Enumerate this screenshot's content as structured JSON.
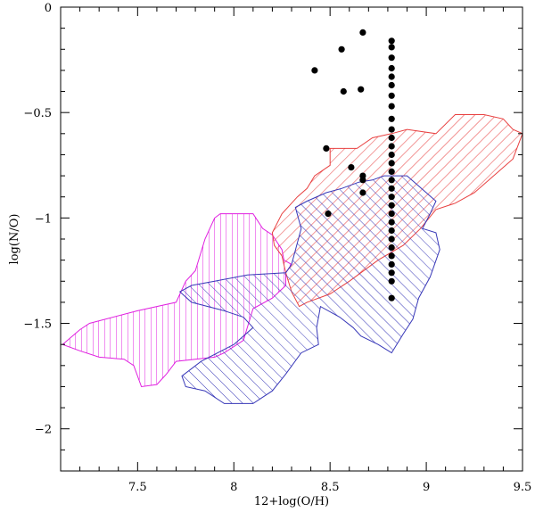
{
  "chart_data": {
    "type": "scatter",
    "title": "",
    "xlabel": "12+log(O/H)",
    "ylabel": "log(N/O)",
    "xlim": [
      7.1,
      9.5
    ],
    "ylim": [
      -2.2,
      0
    ],
    "grid": false,
    "legend": "none",
    "x_ticks": [
      {
        "value": 7.5,
        "label": "7.5"
      },
      {
        "value": 8,
        "label": "8"
      },
      {
        "value": 8.5,
        "label": "8.5"
      },
      {
        "value": 9,
        "label": "9"
      },
      {
        "value": 9.5,
        "label": "9.5"
      }
    ],
    "y_ticks": [
      {
        "value": 0,
        "label": "0"
      },
      {
        "value": -0.5,
        "label": "−0.5"
      },
      {
        "value": -1,
        "label": "−1"
      },
      {
        "value": -1.5,
        "label": "−1.5"
      },
      {
        "value": -2,
        "label": "−2"
      }
    ],
    "x_minor_step": 0.1,
    "y_minor_step": 0.1,
    "regions": [
      {
        "color": "#e020e0",
        "hatch": "vertical",
        "polygon": [
          [
            7.11,
            -1.6
          ],
          [
            7.2,
            -1.53
          ],
          [
            7.25,
            -1.5
          ],
          [
            7.5,
            -1.44
          ],
          [
            7.7,
            -1.4
          ],
          [
            7.75,
            -1.3
          ],
          [
            7.8,
            -1.25
          ],
          [
            7.85,
            -1.1
          ],
          [
            7.9,
            -1.0
          ],
          [
            7.93,
            -0.98
          ],
          [
            8.1,
            -0.98
          ],
          [
            8.15,
            -1.05
          ],
          [
            8.2,
            -1.08
          ],
          [
            8.25,
            -1.15
          ],
          [
            8.26,
            -1.2
          ],
          [
            8.3,
            -1.22
          ],
          [
            8.27,
            -1.26
          ],
          [
            8.27,
            -1.32
          ],
          [
            8.2,
            -1.38
          ],
          [
            8.1,
            -1.43
          ],
          [
            8.05,
            -1.58
          ],
          [
            7.95,
            -1.64
          ],
          [
            7.9,
            -1.66
          ],
          [
            7.7,
            -1.68
          ],
          [
            7.65,
            -1.74
          ],
          [
            7.6,
            -1.79
          ],
          [
            7.52,
            -1.8
          ],
          [
            7.48,
            -1.7
          ],
          [
            7.43,
            -1.67
          ],
          [
            7.3,
            -1.66
          ],
          [
            7.2,
            -1.63
          ],
          [
            7.11,
            -1.6
          ]
        ]
      },
      {
        "color": "#e84040",
        "hatch": "diagonal-up",
        "polygon": [
          [
            8.2,
            -1.07
          ],
          [
            8.25,
            -0.98
          ],
          [
            8.33,
            -0.9
          ],
          [
            8.38,
            -0.86
          ],
          [
            8.42,
            -0.8
          ],
          [
            8.5,
            -0.75
          ],
          [
            8.5,
            -0.67
          ],
          [
            8.64,
            -0.67
          ],
          [
            8.72,
            -0.62
          ],
          [
            8.82,
            -0.6
          ],
          [
            8.9,
            -0.58
          ],
          [
            9.05,
            -0.6
          ],
          [
            9.15,
            -0.51
          ],
          [
            9.3,
            -0.51
          ],
          [
            9.4,
            -0.53
          ],
          [
            9.45,
            -0.58
          ],
          [
            9.5,
            -0.6
          ],
          [
            9.45,
            -0.72
          ],
          [
            9.35,
            -0.8
          ],
          [
            9.25,
            -0.88
          ],
          [
            9.15,
            -0.93
          ],
          [
            9.05,
            -0.96
          ],
          [
            8.97,
            -1.05
          ],
          [
            8.88,
            -1.13
          ],
          [
            8.75,
            -1.2
          ],
          [
            8.6,
            -1.3
          ],
          [
            8.5,
            -1.36
          ],
          [
            8.38,
            -1.4
          ],
          [
            8.34,
            -1.42
          ],
          [
            8.3,
            -1.35
          ],
          [
            8.27,
            -1.26
          ],
          [
            8.25,
            -1.18
          ],
          [
            8.21,
            -1.13
          ],
          [
            8.2,
            -1.07
          ]
        ]
      },
      {
        "color": "#3838b8",
        "hatch": "diagonal-down",
        "polygon": [
          [
            7.72,
            -1.35
          ],
          [
            7.78,
            -1.32
          ],
          [
            7.9,
            -1.3
          ],
          [
            8.07,
            -1.27
          ],
          [
            8.27,
            -1.26
          ],
          [
            8.3,
            -1.22
          ],
          [
            8.35,
            -1.05
          ],
          [
            8.32,
            -0.95
          ],
          [
            8.38,
            -0.92
          ],
          [
            8.48,
            -0.88
          ],
          [
            8.56,
            -0.86
          ],
          [
            8.65,
            -0.83
          ],
          [
            8.72,
            -0.82
          ],
          [
            8.78,
            -0.8
          ],
          [
            8.9,
            -0.8
          ],
          [
            9.05,
            -0.92
          ],
          [
            9.02,
            -0.98
          ],
          [
            8.98,
            -1.05
          ],
          [
            9.05,
            -1.07
          ],
          [
            9.07,
            -1.15
          ],
          [
            9.02,
            -1.28
          ],
          [
            8.96,
            -1.38
          ],
          [
            8.93,
            -1.48
          ],
          [
            8.88,
            -1.55
          ],
          [
            8.82,
            -1.64
          ],
          [
            8.75,
            -1.6
          ],
          [
            8.66,
            -1.56
          ],
          [
            8.62,
            -1.52
          ],
          [
            8.55,
            -1.47
          ],
          [
            8.45,
            -1.42
          ],
          [
            8.43,
            -1.52
          ],
          [
            8.44,
            -1.6
          ],
          [
            8.35,
            -1.64
          ],
          [
            8.27,
            -1.74
          ],
          [
            8.2,
            -1.82
          ],
          [
            8.15,
            -1.85
          ],
          [
            8.1,
            -1.88
          ],
          [
            7.95,
            -1.88
          ],
          [
            7.85,
            -1.82
          ],
          [
            7.75,
            -1.8
          ],
          [
            7.73,
            -1.75
          ],
          [
            7.83,
            -1.68
          ],
          [
            8.0,
            -1.6
          ],
          [
            8.1,
            -1.52
          ],
          [
            8.05,
            -1.47
          ],
          [
            7.95,
            -1.44
          ],
          [
            7.78,
            -1.4
          ],
          [
            7.72,
            -1.35
          ]
        ]
      }
    ],
    "points": [
      [
        8.42,
        -0.3
      ],
      [
        8.56,
        -0.2
      ],
      [
        8.67,
        -0.12
      ],
      [
        8.57,
        -0.4
      ],
      [
        8.66,
        -0.39
      ],
      [
        8.48,
        -0.67
      ],
      [
        8.61,
        -0.76
      ],
      [
        8.67,
        -0.8
      ],
      [
        8.67,
        -0.82
      ],
      [
        8.67,
        -0.88
      ],
      [
        8.49,
        -0.98
      ],
      [
        8.82,
        -0.16
      ],
      [
        8.82,
        -0.19
      ],
      [
        8.82,
        -0.24
      ],
      [
        8.82,
        -0.29
      ],
      [
        8.82,
        -0.33
      ],
      [
        8.82,
        -0.37
      ],
      [
        8.82,
        -0.42
      ],
      [
        8.82,
        -0.47
      ],
      [
        8.82,
        -0.53
      ],
      [
        8.82,
        -0.58
      ],
      [
        8.82,
        -0.62
      ],
      [
        8.82,
        -0.66
      ],
      [
        8.82,
        -0.7
      ],
      [
        8.82,
        -0.74
      ],
      [
        8.82,
        -0.78
      ],
      [
        8.82,
        -0.82
      ],
      [
        8.82,
        -0.86
      ],
      [
        8.82,
        -0.9
      ],
      [
        8.82,
        -0.94
      ],
      [
        8.82,
        -0.98
      ],
      [
        8.82,
        -1.02
      ],
      [
        8.82,
        -1.06
      ],
      [
        8.82,
        -1.1
      ],
      [
        8.82,
        -1.14
      ],
      [
        8.82,
        -1.18
      ],
      [
        8.82,
        -1.22
      ],
      [
        8.82,
        -1.26
      ],
      [
        8.82,
        -1.3
      ],
      [
        8.82,
        -1.38
      ]
    ]
  }
}
